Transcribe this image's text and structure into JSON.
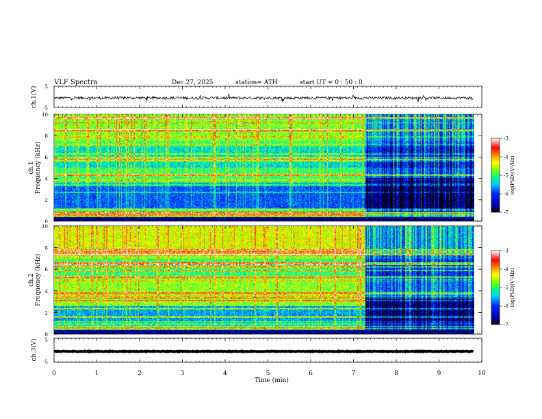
{
  "header": {
    "title": "VLF  Spectra",
    "date": "Dec.27, 2025",
    "station": "station= ATH",
    "start_ut": "start  UT  =    0 : 50 : 0"
  },
  "colors": {
    "trace": "#000000",
    "colormap": [
      "#000000",
      "#0000c8",
      "#0050ff",
      "#00c8ff",
      "#00ff80",
      "#90ff00",
      "#ffff00",
      "#ff8000",
      "#ff0000",
      "#ffffff"
    ]
  },
  "chart_data": [
    {
      "type": "line",
      "panel": "ch1-waveform",
      "ylabel": "ch.1(V)",
      "ylim": [
        -5,
        5
      ],
      "yticks": [
        "5",
        "-5"
      ],
      "x_range": [
        0,
        10
      ],
      "note_values": "broadband voltage trace near -0.5 V with small fluctuations and spikes",
      "series": [
        {
          "values_level": -0.5,
          "noise_amplitude": 0.6,
          "x_end": 9.8
        }
      ]
    },
    {
      "type": "heatmap",
      "panel": "ch1-spectrogram",
      "ylabel": "ch.1\nFrequency  (kHz)",
      "ylim": [
        0,
        10
      ],
      "yticks": [
        "0",
        "2",
        "4",
        "6",
        "8",
        "10"
      ],
      "x_range": [
        0,
        10
      ],
      "data_end_min": 9.8,
      "colorbar": {
        "label": "log(PSD)(V²/Hz)",
        "range": [
          -7,
          -3
        ],
        "ticks": [
          "-3",
          "-4",
          "-5",
          "-6",
          "-7"
        ]
      },
      "segments": [
        {
          "from_min": 0,
          "to_min": 7.25,
          "upper_level": -5.1,
          "quiet_band_khz": [
            0.9,
            3.6
          ]
        },
        {
          "from_min": 7.25,
          "to_min": 9.8,
          "upper_level": -5.9,
          "quiet_band_khz": [
            0.9,
            4.0
          ]
        }
      ]
    },
    {
      "type": "heatmap",
      "panel": "ch2-spectrogram",
      "ylabel": "ch.2\nFrequency  (kHz)",
      "ylim": [
        0,
        10
      ],
      "yticks": [
        "0",
        "2",
        "4",
        "6",
        "8",
        "10"
      ],
      "x_range": [
        0,
        10
      ],
      "data_end_min": 9.8,
      "colorbar": {
        "label": "log(PSD)(V²/Hz)",
        "range": [
          -7,
          -3
        ],
        "ticks": [
          "-3",
          "-4",
          "-5",
          "-6",
          "-7"
        ]
      },
      "segments": [
        {
          "from_min": 0,
          "to_min": 7.25,
          "upper_level": -4.8,
          "quiet_band_khz": [
            0.3,
            2.6
          ]
        },
        {
          "from_min": 7.25,
          "to_min": 9.8,
          "upper_level": -5.8,
          "quiet_band_khz": [
            0.3,
            3.4
          ]
        }
      ]
    },
    {
      "type": "line",
      "panel": "ch3-waveform",
      "ylabel": "ch.3(V)",
      "ylim": [
        -5,
        5
      ],
      "yticks": [
        "5",
        "-5"
      ],
      "x_range": [
        0,
        10
      ],
      "series": [
        {
          "values_level": -0.5,
          "noise_amplitude": 0.15,
          "x_end": 9.8
        }
      ]
    }
  ],
  "xaxis": {
    "label": "Time  (min)",
    "ticks": [
      "0",
      "1",
      "2",
      "3",
      "4",
      "5",
      "6",
      "7",
      "8",
      "9",
      "10"
    ]
  }
}
